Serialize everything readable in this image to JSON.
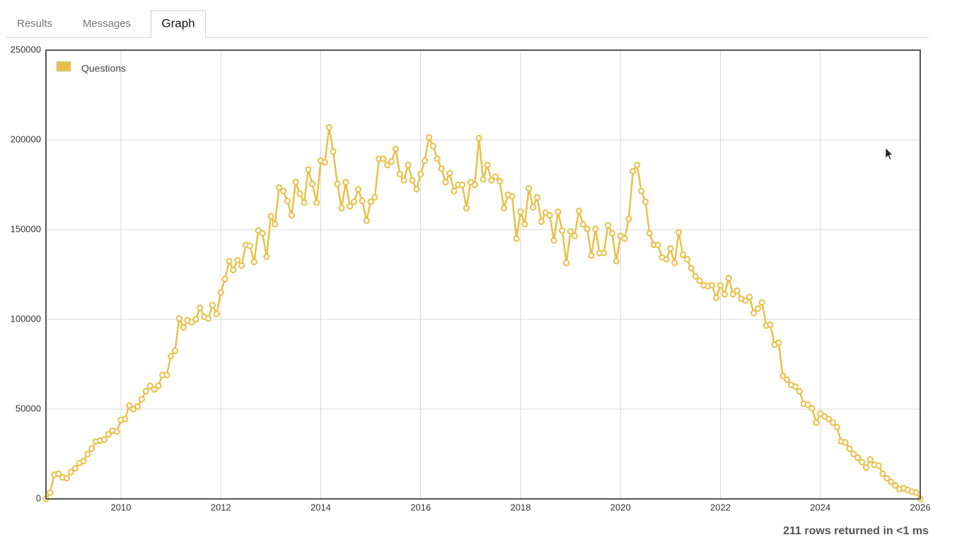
{
  "tabs": [
    {
      "label": "Results",
      "active": false
    },
    {
      "label": "Messages",
      "active": false
    },
    {
      "label": "Graph",
      "active": true
    }
  ],
  "status": "211 rows returned in <1 ms",
  "chart_data": {
    "type": "line",
    "legend": "top-left",
    "grid": true,
    "xlim": [
      2008.5,
      2026
    ],
    "ylim": [
      0,
      250000
    ],
    "xticks": [
      2010,
      2012,
      2014,
      2016,
      2018,
      2020,
      2022,
      2024,
      2026
    ],
    "yticks": [
      0,
      50000,
      100000,
      150000,
      200000,
      250000
    ],
    "x": [
      2008.5,
      2008.583,
      2008.667,
      2008.75,
      2008.833,
      2008.917,
      2009,
      2009.083,
      2009.167,
      2009.25,
      2009.333,
      2009.417,
      2009.5,
      2009.583,
      2009.667,
      2009.75,
      2009.833,
      2009.917,
      2010,
      2010.083,
      2010.167,
      2010.25,
      2010.333,
      2010.417,
      2010.5,
      2010.583,
      2010.667,
      2010.75,
      2010.833,
      2010.917,
      2011,
      2011.083,
      2011.167,
      2011.25,
      2011.333,
      2011.417,
      2011.5,
      2011.583,
      2011.667,
      2011.75,
      2011.833,
      2011.917,
      2012,
      2012.083,
      2012.167,
      2012.25,
      2012.333,
      2012.417,
      2012.5,
      2012.583,
      2012.667,
      2012.75,
      2012.833,
      2012.917,
      2013,
      2013.083,
      2013.167,
      2013.25,
      2013.333,
      2013.417,
      2013.5,
      2013.583,
      2013.667,
      2013.75,
      2013.833,
      2013.917,
      2014,
      2014.083,
      2014.167,
      2014.25,
      2014.333,
      2014.417,
      2014.5,
      2014.583,
      2014.667,
      2014.75,
      2014.833,
      2014.917,
      2015,
      2015.083,
      2015.167,
      2015.25,
      2015.333,
      2015.417,
      2015.5,
      2015.583,
      2015.667,
      2015.75,
      2015.833,
      2015.917,
      2016,
      2016.083,
      2016.167,
      2016.25,
      2016.333,
      2016.417,
      2016.5,
      2016.583,
      2016.667,
      2016.75,
      2016.833,
      2016.917,
      2017,
      2017.083,
      2017.167,
      2017.25,
      2017.333,
      2017.417,
      2017.5,
      2017.583,
      2017.667,
      2017.75,
      2017.833,
      2017.917,
      2018,
      2018.083,
      2018.167,
      2018.25,
      2018.333,
      2018.417,
      2018.5,
      2018.583,
      2018.667,
      2018.75,
      2018.833,
      2018.917,
      2019,
      2019.083,
      2019.167,
      2019.25,
      2019.333,
      2019.417,
      2019.5,
      2019.583,
      2019.667,
      2019.75,
      2019.833,
      2019.917,
      2020,
      2020.083,
      2020.167,
      2020.25,
      2020.333,
      2020.417,
      2020.5,
      2020.583,
      2020.667,
      2020.75,
      2020.833,
      2020.917,
      2021,
      2021.083,
      2021.167,
      2021.25,
      2021.333,
      2021.417,
      2021.5,
      2021.583,
      2021.667,
      2021.75,
      2021.833,
      2021.917,
      2022,
      2022.083,
      2022.167,
      2022.25,
      2022.333,
      2022.417,
      2022.5,
      2022.583,
      2022.667,
      2022.75,
      2022.833,
      2022.917,
      2023,
      2023.083,
      2023.167,
      2023.25,
      2023.333,
      2023.417,
      2023.5,
      2023.583,
      2023.667,
      2023.75,
      2023.833,
      2023.917,
      2024,
      2024.083,
      2024.167,
      2024.25,
      2024.333,
      2024.417,
      2024.5,
      2024.583,
      2024.667,
      2024.75,
      2024.833,
      2024.917,
      2025,
      2025.083,
      2025.167,
      2025.25,
      2025.333,
      2025.417,
      2025.5,
      2025.583,
      2025.667,
      2025.75,
      2025.833,
      2025.917,
      2026
    ],
    "series": [
      {
        "name": "Questions",
        "color": "#e8c048",
        "values": [
          0,
          3500,
          13500,
          14000,
          12000,
          11500,
          15000,
          17000,
          20000,
          21000,
          25000,
          28000,
          32000,
          32500,
          33000,
          36000,
          38000,
          37500,
          44000,
          44500,
          52000,
          50000,
          51500,
          55500,
          60000,
          63000,
          61000,
          63000,
          69000,
          69000,
          79500,
          82500,
          100500,
          95500,
          99500,
          98500,
          100000,
          106500,
          101500,
          100500,
          108000,
          103000,
          115000,
          122500,
          132500,
          127500,
          133000,
          130000,
          141500,
          141000,
          132000,
          149500,
          148000,
          135000,
          157500,
          153000,
          173500,
          171500,
          166000,
          158000,
          176500,
          170000,
          165000,
          183500,
          175500,
          165000,
          188500,
          187500,
          207000,
          193500,
          175500,
          162000,
          176500,
          163000,
          165500,
          172500,
          166000,
          155000,
          165500,
          168000,
          189500,
          189500,
          186000,
          188000,
          195000,
          181000,
          177500,
          186000,
          177500,
          172500,
          181000,
          188500,
          201500,
          196500,
          189500,
          184000,
          176500,
          181500,
          171500,
          175000,
          175000,
          162000,
          176500,
          175000,
          201000,
          178000,
          186000,
          177500,
          179500,
          177000,
          162000,
          169500,
          168500,
          145000,
          160000,
          153000,
          173000,
          162500,
          168000,
          154500,
          159500,
          158000,
          144000,
          160000,
          149500,
          131500,
          149000,
          146500,
          160500,
          153000,
          150500,
          135500,
          150500,
          137000,
          137000,
          152500,
          148000,
          132500,
          146500,
          145000,
          156000,
          182500,
          186000,
          171500,
          165500,
          148000,
          141500,
          141500,
          134500,
          133500,
          139500,
          131500,
          148500,
          136000,
          133500,
          128500,
          124000,
          121500,
          119000,
          118500,
          119000,
          112000,
          119000,
          114000,
          123000,
          114000,
          116000,
          111500,
          110500,
          112500,
          103500,
          106000,
          109500,
          96500,
          97000,
          86000,
          87000,
          68500,
          66500,
          63500,
          62500,
          60000,
          53000,
          52500,
          50500,
          42500,
          47500,
          46000,
          44500,
          42500,
          40000,
          32000,
          31500,
          28000,
          25000,
          23000,
          20500,
          17500,
          22000,
          19000,
          18500,
          14000,
          11500,
          9500,
          7500,
          5500,
          6000,
          5000,
          4000,
          3500,
          0
        ]
      }
    ]
  }
}
